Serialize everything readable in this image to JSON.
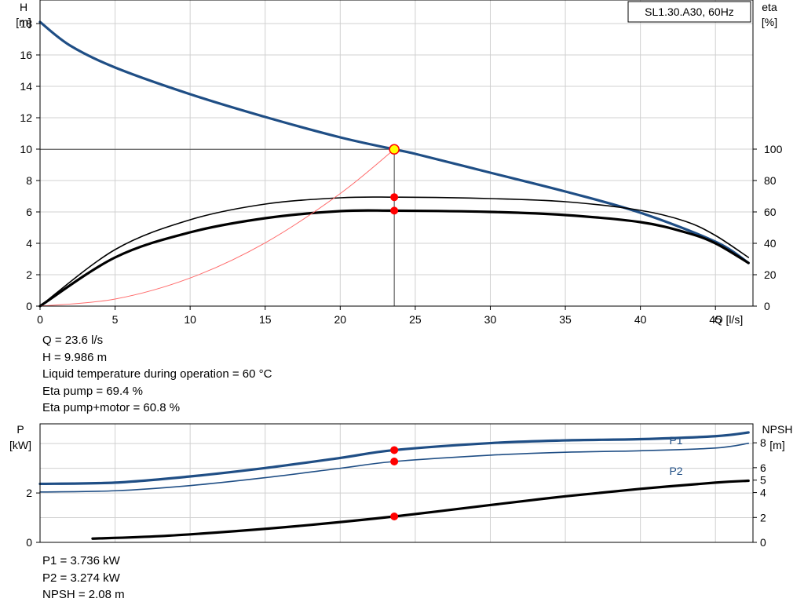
{
  "chart_data": [
    {
      "type": "line",
      "title": "SL1.30.A30, 60Hz",
      "xlabel": "Q [l/s]",
      "ylabel_left": [
        "H",
        "[m]"
      ],
      "ylabel_right": [
        "eta",
        "[%]"
      ],
      "xlim": [
        0,
        47.5
      ],
      "ylim_left": [
        0,
        19.5
      ],
      "ylim_right": [
        0,
        100
      ],
      "x_ticks": [
        0,
        5,
        10,
        15,
        20,
        25,
        30,
        35,
        40,
        45
      ],
      "y_ticks_left": [
        0,
        2,
        4,
        6,
        8,
        10,
        12,
        14,
        16,
        18
      ],
      "y_ticks_right": [
        0,
        20,
        40,
        60,
        80,
        100
      ],
      "grid": true,
      "legend": "top-right",
      "operating_point": {
        "q": 23.6,
        "h": 9.986,
        "eta_pump": 69.4,
        "eta_total": 60.8
      },
      "series": [
        {
          "axis": "left",
          "color": "#1f4e85",
          "width": 3.2,
          "x": [
            0,
            2,
            5,
            10,
            15,
            20,
            23.6,
            25,
            30,
            35,
            40,
            45,
            47.2
          ],
          "y": [
            18.1,
            16.6,
            15.2,
            13.5,
            12.05,
            10.75,
            9.986,
            9.7,
            8.5,
            7.3,
            5.95,
            4.1,
            2.75
          ]
        },
        {
          "axis": "right",
          "color": "#000000",
          "width": 1.6,
          "x": [
            0,
            5,
            10,
            15,
            20,
            23.6,
            30,
            35,
            40,
            43,
            45,
            47.2
          ],
          "y": [
            0,
            36,
            55,
            65,
            69,
            69.4,
            68.5,
            66.5,
            61,
            54,
            45,
            31
          ]
        },
        {
          "axis": "right",
          "color": "#000000",
          "width": 3.2,
          "x": [
            0,
            5,
            10,
            15,
            20,
            23.6,
            30,
            35,
            40,
            43,
            45,
            47.2
          ],
          "y": [
            0,
            31,
            47,
            56,
            60.5,
            60.8,
            60,
            58,
            53.5,
            47,
            40,
            27.5
          ]
        },
        {
          "axis": "left",
          "color": "#ff6b6b",
          "width": 1,
          "x": [
            0,
            5,
            10,
            15,
            20,
            23.6
          ],
          "y": [
            0,
            0.45,
            1.79,
            4.03,
            7.17,
            9.986
          ]
        }
      ]
    },
    {
      "type": "line",
      "xlim": [
        0,
        47.5
      ],
      "ylabel_left": [
        "P",
        "[kW]"
      ],
      "ylabel_right": [
        "NPSH",
        "[m]"
      ],
      "y_ticks_left": [
        0,
        2
      ],
      "y_ticks_right": [
        0,
        2,
        4,
        5,
        6,
        8
      ],
      "ylim_left": [
        0,
        4.8
      ],
      "ylim_right": [
        0,
        20
      ],
      "grid": true,
      "series": [
        {
          "name": "P1",
          "axis": "left",
          "color": "#1f4e85",
          "width": 3.2,
          "x": [
            0,
            5,
            10,
            15,
            20,
            23.6,
            30,
            35,
            40,
            45,
            47.2
          ],
          "y": [
            2.37,
            2.42,
            2.67,
            3.01,
            3.42,
            3.736,
            4.02,
            4.13,
            4.18,
            4.3,
            4.45
          ]
        },
        {
          "name": "P2",
          "axis": "left",
          "color": "#1f4e85",
          "width": 1.6,
          "x": [
            0,
            5,
            10,
            15,
            20,
            23.6,
            30,
            35,
            40,
            45,
            47.2
          ],
          "y": [
            2.04,
            2.09,
            2.3,
            2.62,
            3.0,
            3.274,
            3.53,
            3.65,
            3.71,
            3.82,
            4.01
          ]
        },
        {
          "name": "NPSH",
          "axis": "right",
          "color": "#000000",
          "width": 3.2,
          "x": [
            3.5,
            8,
            13,
            18,
            23.6,
            30,
            35,
            40,
            45,
            47.2
          ],
          "y": [
            0.3,
            0.5,
            0.9,
            1.4,
            2.08,
            3.0,
            3.7,
            4.3,
            4.8,
            4.95
          ]
        }
      ],
      "operating_point": {
        "q": 23.6,
        "p1": 3.736,
        "p2": 3.274,
        "npsh": 2.08
      }
    }
  ],
  "info_top": [
    "Q = 23.6 l/s",
    "H = 9.986 m",
    "Liquid temperature during operation = 60 °C",
    "Eta pump = 69.4 %",
    "Eta pump+motor = 60.8 %"
  ],
  "info_bottom": [
    "P1 = 3.736 kW",
    "P2 = 3.274 kW",
    "NPSH = 2.08 m"
  ],
  "colors": {
    "grid": "#d0d0d0",
    "pump": "#1f4e85",
    "op_point": "#ff0000",
    "op_center": "#ffff00"
  }
}
